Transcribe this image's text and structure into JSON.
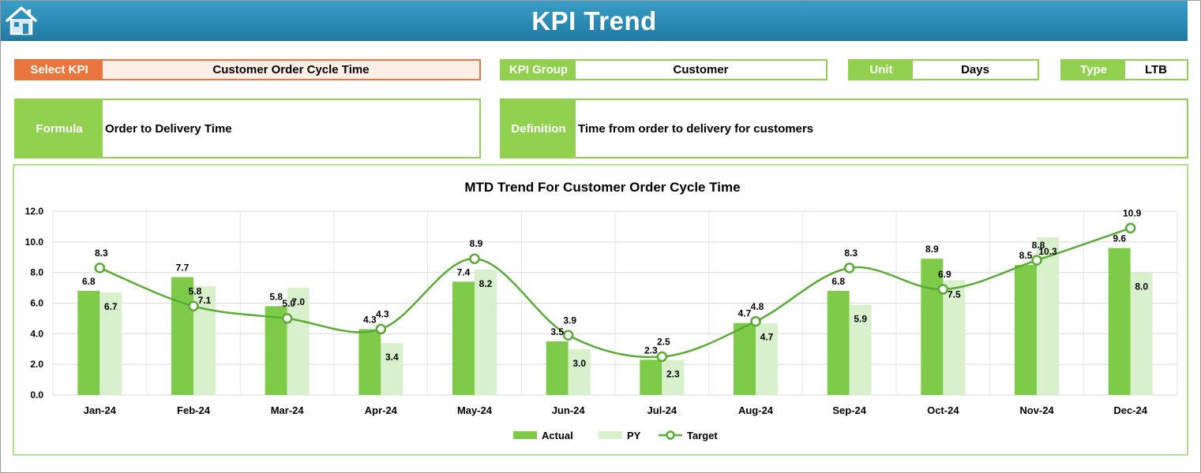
{
  "header": {
    "title": "KPI Trend",
    "home_icon": "home-icon"
  },
  "fields": {
    "select_kpi": {
      "label": "Select KPI",
      "value": "Customer Order Cycle Time"
    },
    "kpi_group": {
      "label": "KPI Group",
      "value": "Customer"
    },
    "unit": {
      "label": "Unit",
      "value": "Days"
    },
    "type": {
      "label": "Type",
      "value": "LTB"
    }
  },
  "formula": {
    "label": "Formula",
    "value": "Order to Delivery Time"
  },
  "definition": {
    "label": "Definition",
    "value": "Time from order to delivery for customers"
  },
  "colors": {
    "header": "#2a8ab5",
    "orange": "#e8763d",
    "green": "#92d050",
    "actual": "#7ecb4a",
    "py": "#d8f0cb",
    "target": "#5aab35"
  },
  "chart_data": {
    "type": "bar",
    "title": "MTD Trend For Customer Order Cycle Time",
    "categories": [
      "Jan-24",
      "Feb-24",
      "Mar-24",
      "Apr-24",
      "May-24",
      "Jun-24",
      "Jul-24",
      "Aug-24",
      "Sep-24",
      "Oct-24",
      "Nov-24",
      "Dec-24"
    ],
    "series": [
      {
        "name": "Actual",
        "kind": "bar",
        "values": [
          6.8,
          7.7,
          5.8,
          4.3,
          7.4,
          3.5,
          2.3,
          4.7,
          6.8,
          8.9,
          8.5,
          9.6
        ]
      },
      {
        "name": "PY",
        "kind": "bar",
        "values": [
          6.7,
          7.1,
          7.0,
          3.4,
          8.2,
          3.0,
          2.3,
          4.7,
          5.9,
          7.5,
          10.3,
          8.0
        ]
      },
      {
        "name": "Target",
        "kind": "line",
        "values": [
          8.3,
          5.8,
          5.0,
          4.3,
          8.9,
          3.9,
          2.5,
          4.8,
          8.3,
          6.9,
          8.8,
          10.9
        ]
      }
    ],
    "ylim": [
      0,
      12
    ],
    "yticks": [
      "0.0",
      "2.0",
      "4.0",
      "6.0",
      "8.0",
      "10.0",
      "12.0"
    ],
    "xlabel": "",
    "ylabel": "",
    "grid": true,
    "legend": "bottom"
  }
}
